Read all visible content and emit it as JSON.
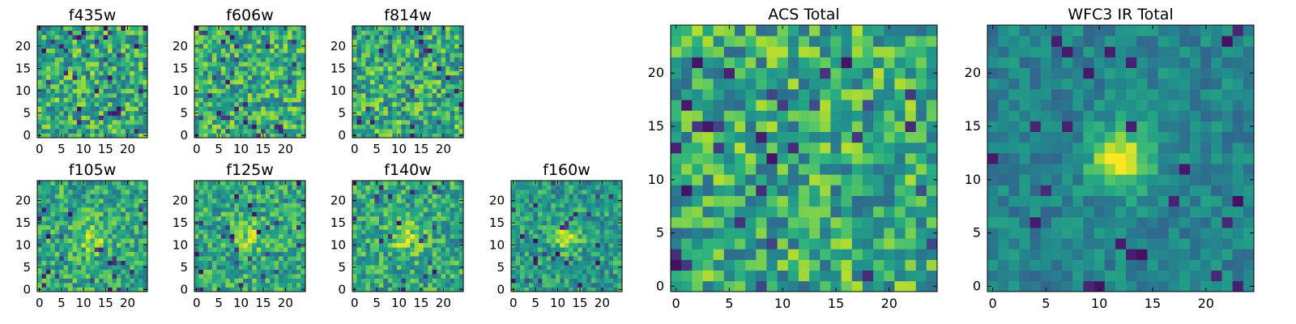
{
  "chart_data": [
    {
      "type": "heatmap",
      "title": "f435w",
      "xticks": [
        "0",
        "5",
        "10",
        "15",
        "20"
      ],
      "yticks": [
        "0",
        "5",
        "10",
        "15",
        "20"
      ],
      "xlim": [
        0,
        24
      ],
      "ylim": [
        0,
        24
      ],
      "grid": "25x25",
      "pattern": "noise",
      "colormap": "viridis"
    },
    {
      "type": "heatmap",
      "title": "f606w",
      "xticks": [
        "0",
        "5",
        "10",
        "15",
        "20"
      ],
      "yticks": [
        "0",
        "5",
        "10",
        "15",
        "20"
      ],
      "xlim": [
        0,
        24
      ],
      "ylim": [
        0,
        24
      ],
      "grid": "25x25",
      "pattern": "noise",
      "colormap": "viridis"
    },
    {
      "type": "heatmap",
      "title": "f814w",
      "xticks": [
        "0",
        "5",
        "10",
        "15",
        "20"
      ],
      "yticks": [
        "0",
        "5",
        "10",
        "15",
        "20"
      ],
      "xlim": [
        0,
        24
      ],
      "ylim": [
        0,
        24
      ],
      "grid": "25x25",
      "pattern": "noise",
      "colormap": "viridis"
    },
    {
      "type": "heatmap",
      "title": "f105w",
      "xticks": [
        "0",
        "5",
        "10",
        "15",
        "20"
      ],
      "yticks": [
        "0",
        "5",
        "10",
        "15",
        "20"
      ],
      "xlim": [
        0,
        24
      ],
      "ylim": [
        0,
        24
      ],
      "grid": "25x25",
      "pattern": "faint source near center",
      "colormap": "viridis"
    },
    {
      "type": "heatmap",
      "title": "f125w",
      "xticks": [
        "0",
        "5",
        "10",
        "15",
        "20"
      ],
      "yticks": [
        "0",
        "5",
        "10",
        "15",
        "20"
      ],
      "xlim": [
        0,
        24
      ],
      "ylim": [
        0,
        24
      ],
      "grid": "25x25",
      "pattern": "faint source near center",
      "colormap": "viridis"
    },
    {
      "type": "heatmap",
      "title": "f140w",
      "xticks": [
        "0",
        "5",
        "10",
        "15",
        "20"
      ],
      "yticks": [
        "0",
        "5",
        "10",
        "15",
        "20"
      ],
      "xlim": [
        0,
        24
      ],
      "ylim": [
        0,
        24
      ],
      "grid": "25x25",
      "pattern": "faint source near center",
      "colormap": "viridis"
    },
    {
      "type": "heatmap",
      "title": "f160w",
      "xticks": [
        "0",
        "5",
        "10",
        "15",
        "20"
      ],
      "yticks": [
        "0",
        "5",
        "10",
        "15",
        "20"
      ],
      "xlim": [
        0,
        24
      ],
      "ylim": [
        0,
        24
      ],
      "grid": "25x25",
      "pattern": "source near center",
      "colormap": "viridis"
    },
    {
      "type": "heatmap",
      "title": "ACS Total",
      "xticks": [
        "0",
        "5",
        "10",
        "15",
        "20"
      ],
      "yticks": [
        "0",
        "5",
        "10",
        "15",
        "20"
      ],
      "xlim": [
        0,
        24
      ],
      "ylim": [
        0,
        24
      ],
      "grid": "25x25",
      "pattern": "noise",
      "colormap": "viridis"
    },
    {
      "type": "heatmap",
      "title": "WFC3 IR Total",
      "xticks": [
        "0",
        "5",
        "10",
        "15",
        "20"
      ],
      "yticks": [
        "0",
        "5",
        "10",
        "15",
        "20"
      ],
      "xlim": [
        0,
        24
      ],
      "ylim": [
        0,
        24
      ],
      "grid": "25x25",
      "pattern": "bright source at center",
      "source_center": [
        12,
        12
      ],
      "colormap": "viridis"
    }
  ]
}
